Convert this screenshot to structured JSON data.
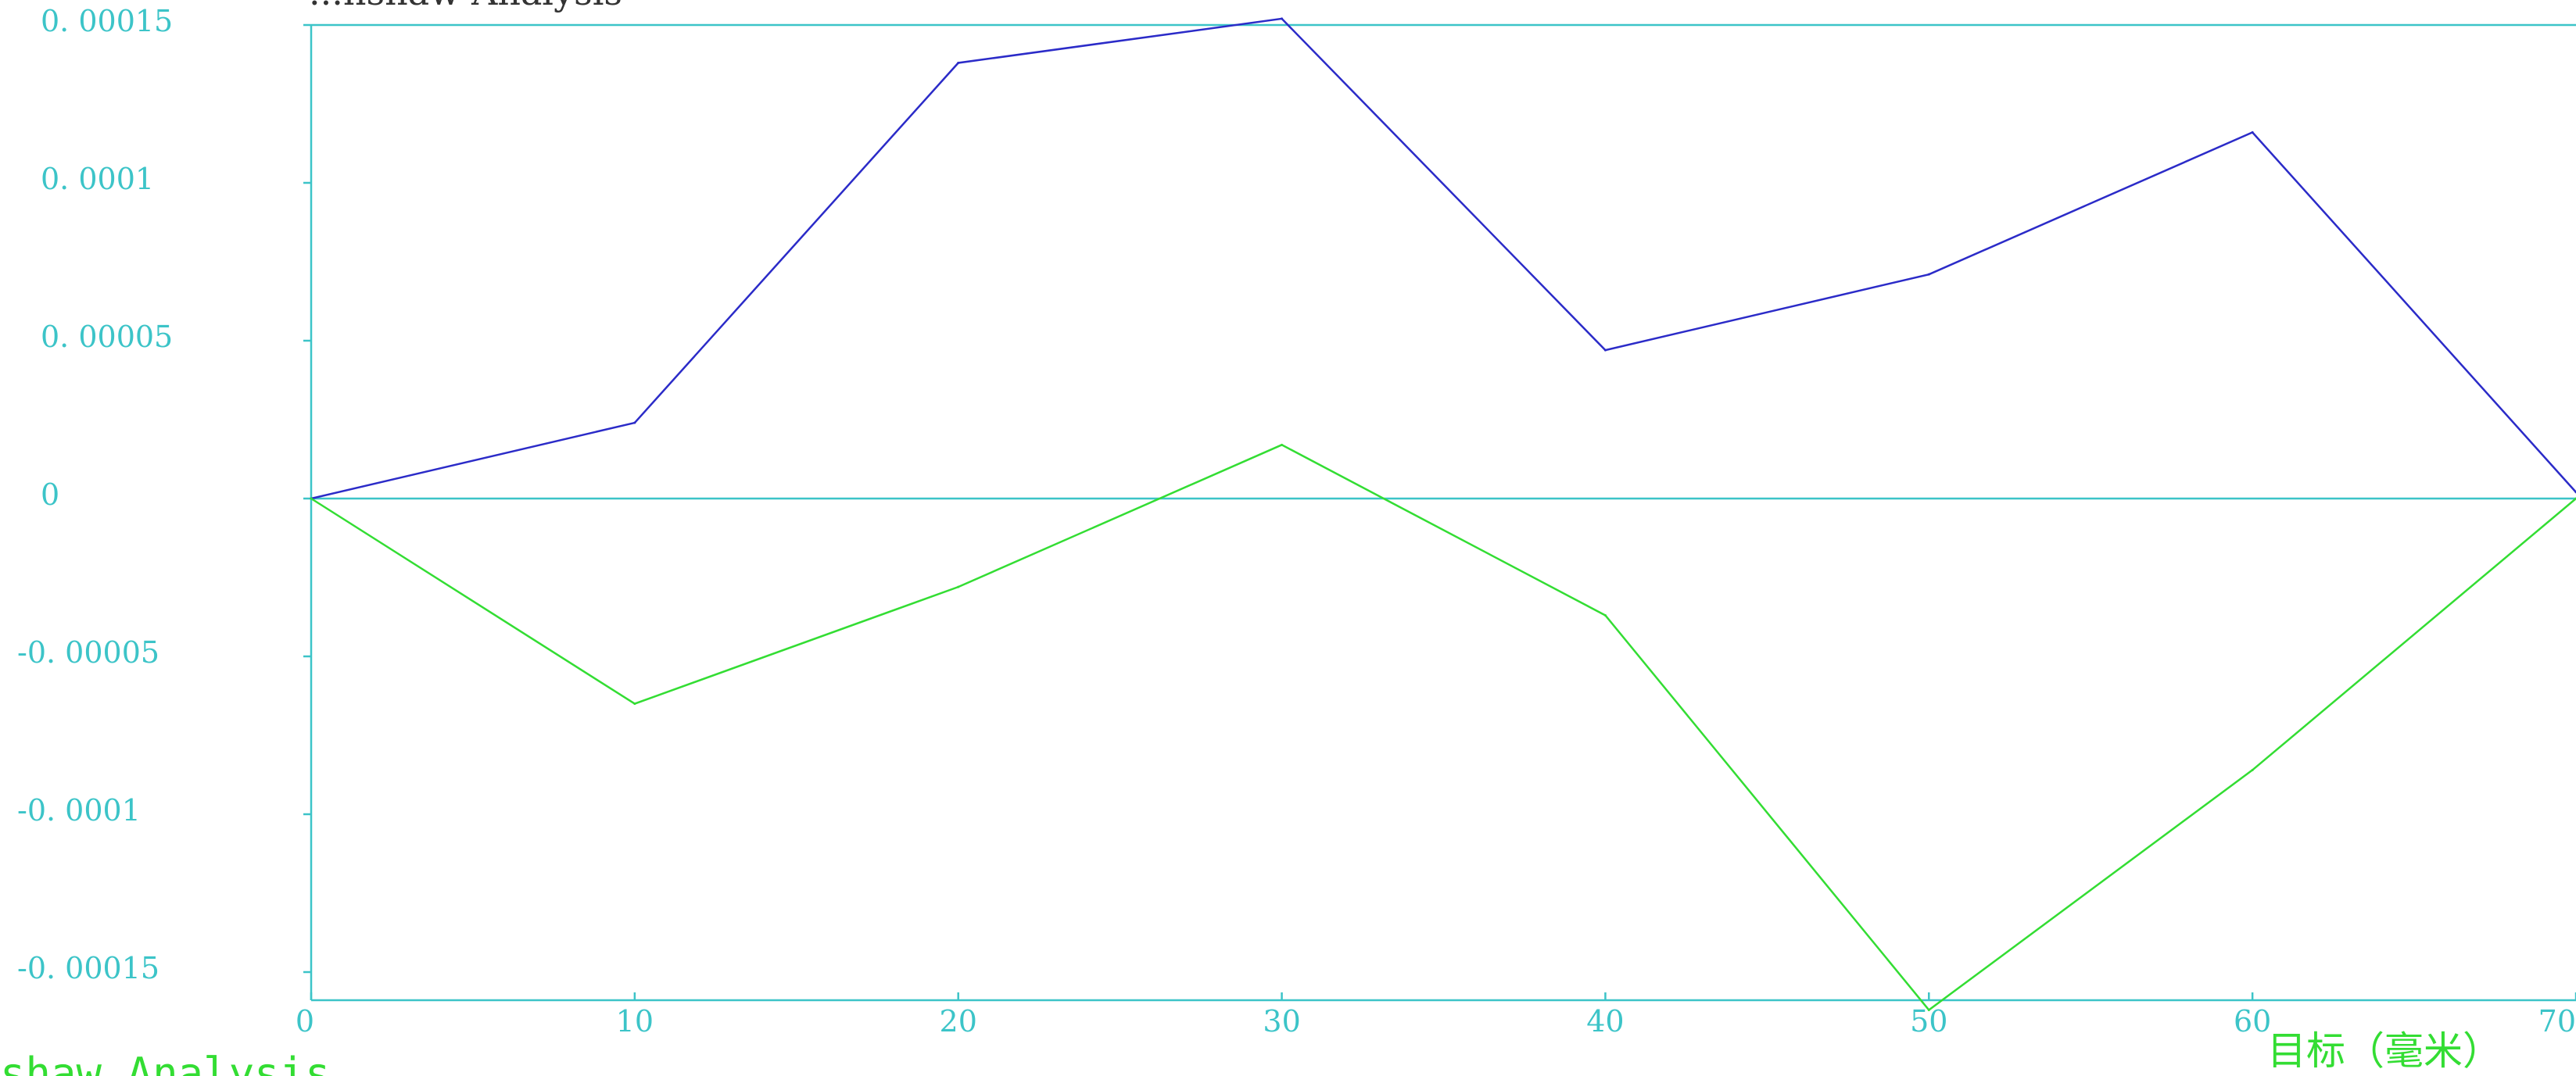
{
  "chart_data": {
    "type": "line",
    "title": "...nshaw Analysis",
    "xlabel": "目标（毫米）",
    "footer": "shaw Analysis",
    "x": [
      0,
      10,
      20,
      30,
      40,
      50,
      60,
      70
    ],
    "xlim": [
      0,
      70
    ],
    "ylim": [
      -0.00016,
      0.00015
    ],
    "xticks": [
      "0",
      "10",
      "20",
      "30",
      "40",
      "50",
      "60",
      "70"
    ],
    "yticks": [
      {
        "value": 0.00015,
        "label": "0.00015"
      },
      {
        "value": 0.0001,
        "label": "0.0001"
      },
      {
        "value": 5e-05,
        "label": "0.00005"
      },
      {
        "value": 0,
        "label": "0"
      },
      {
        "value": -5e-05,
        "label": "-0.00005"
      },
      {
        "value": -0.0001,
        "label": "-0.0001"
      },
      {
        "value": -0.00015,
        "label": "-0.00015"
      }
    ],
    "series": [
      {
        "color": "#2b2bc8",
        "values": [
          0,
          2.4e-05,
          0.000138,
          0.000152,
          4.7e-05,
          7.1e-05,
          0.000116,
          2e-06
        ]
      },
      {
        "color": "#33dd33",
        "values": [
          0,
          -6.5e-05,
          -2.8e-05,
          1.7e-05,
          -3.7e-05,
          -0.000162,
          -8.6e-05,
          0
        ]
      }
    ],
    "zero_line": true,
    "grid": false,
    "axis_color": "#3cc4c8"
  }
}
